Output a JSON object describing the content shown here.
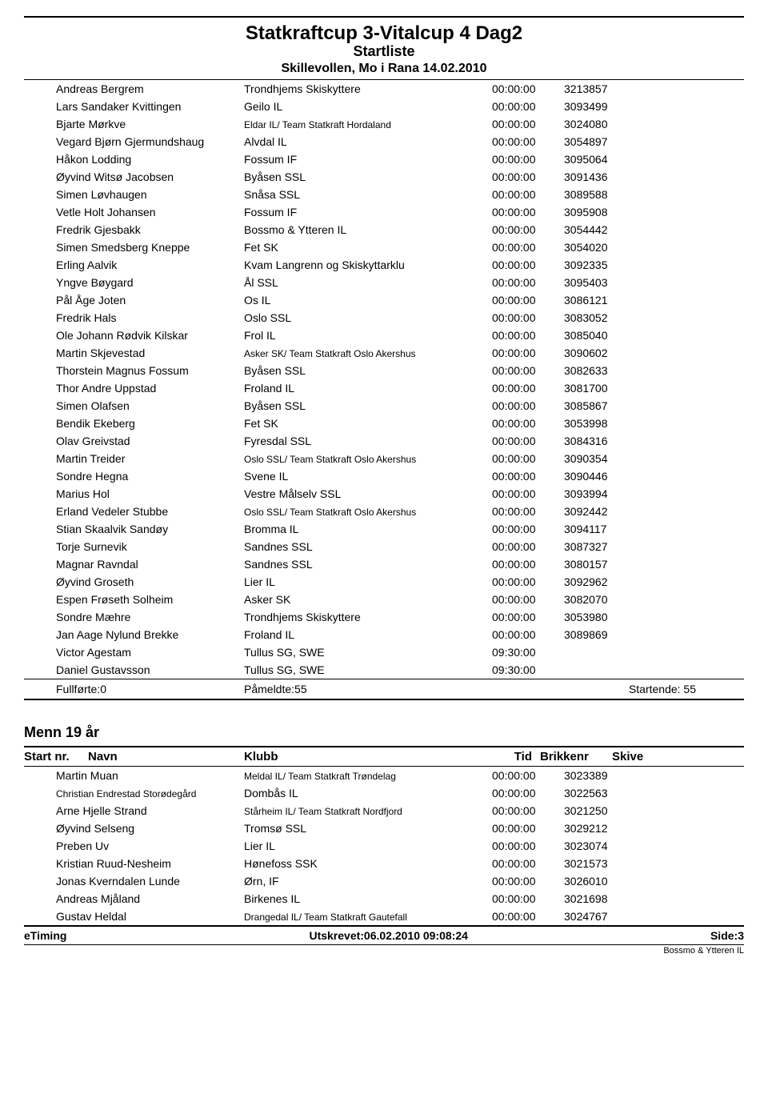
{
  "header": {
    "title": "Statkraftcup 3-Vitalcup 4 Dag2",
    "subtitle": "Startliste",
    "location": "Skillevollen, Mo i Rana 14.02.2010"
  },
  "main_rows": [
    {
      "name": "Andreas Bergrem",
      "club": "Trondhjems Skiskyttere",
      "time": "00:00:00",
      "brikkenr": "3213857"
    },
    {
      "name": "Lars Sandaker Kvittingen",
      "club": "Geilo IL",
      "time": "00:00:00",
      "brikkenr": "3093499"
    },
    {
      "name": "Bjarte Mørkve",
      "club": "Eldar IL/ Team Statkraft Hordaland",
      "club_small": true,
      "time": "00:00:00",
      "brikkenr": "3024080"
    },
    {
      "name": "Vegard Bjørn Gjermundshaug",
      "club": "Alvdal IL",
      "time": "00:00:00",
      "brikkenr": "3054897"
    },
    {
      "name": "Håkon Lodding",
      "club": "Fossum IF",
      "time": "00:00:00",
      "brikkenr": "3095064"
    },
    {
      "name": "Øyvind Witsø Jacobsen",
      "club": "Byåsen SSL",
      "time": "00:00:00",
      "brikkenr": "3091436"
    },
    {
      "name": "Simen Løvhaugen",
      "club": "Snåsa SSL",
      "time": "00:00:00",
      "brikkenr": "3089588"
    },
    {
      "name": "Vetle Holt Johansen",
      "club": "Fossum IF",
      "time": "00:00:00",
      "brikkenr": "3095908"
    },
    {
      "name": "Fredrik Gjesbakk",
      "club": "Bossmo & Ytteren IL",
      "time": "00:00:00",
      "brikkenr": "3054442"
    },
    {
      "name": "Simen Smedsberg Kneppe",
      "club": "Fet SK",
      "time": "00:00:00",
      "brikkenr": "3054020"
    },
    {
      "name": "Erling Aalvik",
      "club": "Kvam Langrenn og Skiskyttarklu",
      "time": "00:00:00",
      "brikkenr": "3092335"
    },
    {
      "name": "Yngve Bøygard",
      "club": "Ål SSL",
      "time": "00:00:00",
      "brikkenr": "3095403"
    },
    {
      "name": "Pål Åge Joten",
      "club": "Os IL",
      "time": "00:00:00",
      "brikkenr": "3086121"
    },
    {
      "name": "Fredrik Hals",
      "club": "Oslo SSL",
      "time": "00:00:00",
      "brikkenr": "3083052"
    },
    {
      "name": "Ole Johann Rødvik Kilskar",
      "club": "Frol IL",
      "time": "00:00:00",
      "brikkenr": "3085040"
    },
    {
      "name": "Martin Skjevestad",
      "club": "Asker SK/ Team Statkraft Oslo Akershus",
      "club_small": true,
      "time": "00:00:00",
      "brikkenr": "3090602"
    },
    {
      "name": "Thorstein Magnus Fossum",
      "club": "Byåsen SSL",
      "time": "00:00:00",
      "brikkenr": "3082633"
    },
    {
      "name": "Thor Andre Uppstad",
      "club": "Froland IL",
      "time": "00:00:00",
      "brikkenr": "3081700"
    },
    {
      "name": "Simen Olafsen",
      "club": "Byåsen SSL",
      "time": "00:00:00",
      "brikkenr": "3085867"
    },
    {
      "name": "Bendik Ekeberg",
      "club": "Fet SK",
      "time": "00:00:00",
      "brikkenr": "3053998"
    },
    {
      "name": "Olav Greivstad",
      "club": "Fyresdal SSL",
      "time": "00:00:00",
      "brikkenr": "3084316"
    },
    {
      "name": "Martin Treider",
      "club": "Oslo SSL/ Team Statkraft Oslo Akershus",
      "club_small": true,
      "time": "00:00:00",
      "brikkenr": "3090354"
    },
    {
      "name": "Sondre Hegna",
      "club": "Svene IL",
      "time": "00:00:00",
      "brikkenr": "3090446"
    },
    {
      "name": "Marius Hol",
      "club": "Vestre Målselv SSL",
      "time": "00:00:00",
      "brikkenr": "3093994"
    },
    {
      "name": "Erland Vedeler Stubbe",
      "club": "Oslo SSL/ Team Statkraft Oslo Akershus",
      "club_small": true,
      "time": "00:00:00",
      "brikkenr": "3092442"
    },
    {
      "name": "Stian Skaalvik Sandøy",
      "club": "Bromma IL",
      "time": "00:00:00",
      "brikkenr": "3094117"
    },
    {
      "name": "Torje Surnevik",
      "club": "Sandnes SSL",
      "time": "00:00:00",
      "brikkenr": "3087327"
    },
    {
      "name": "Magnar Ravndal",
      "club": "Sandnes SSL",
      "time": "00:00:00",
      "brikkenr": "3080157"
    },
    {
      "name": "Øyvind Groseth",
      "club": "Lier IL",
      "time": "00:00:00",
      "brikkenr": "3092962"
    },
    {
      "name": "Espen Frøseth Solheim",
      "club": "Asker SK",
      "time": "00:00:00",
      "brikkenr": "3082070"
    },
    {
      "name": "Sondre Mæhre",
      "club": "Trondhjems Skiskyttere",
      "time": "00:00:00",
      "brikkenr": "3053980"
    },
    {
      "name": "Jan Aage Nylund Brekke",
      "club": "Froland IL",
      "time": "00:00:00",
      "brikkenr": "3089869"
    },
    {
      "name": "Victor Agestam",
      "club": "Tullus SG, SWE",
      "time": "09:30:00",
      "brikkenr": ""
    },
    {
      "name": "Daniel Gustavsson",
      "club": "Tullus SG, SWE",
      "time": "09:30:00",
      "brikkenr": ""
    }
  ],
  "summary": {
    "fullforte": "Fullførte:0",
    "pameldte": "Påmeldte:55",
    "startende": "Startende: 55"
  },
  "category": {
    "title": "Menn 19 år",
    "headers": {
      "startnr": "Start nr.",
      "navn": "Navn",
      "klubb": "Klubb",
      "tid": "Tid",
      "brikkenr": "Brikkenr",
      "skive": "Skive"
    },
    "rows": [
      {
        "name": "Martin Muan",
        "club": "Meldal IL/ Team Statkraft Trøndelag",
        "club_small": true,
        "time": "00:00:00",
        "brikkenr": "3023389"
      },
      {
        "name": "Christian Endrestad Storødegård",
        "name_small": true,
        "club": "Dombås IL",
        "time": "00:00:00",
        "brikkenr": "3022563"
      },
      {
        "name": "Arne Hjelle Strand",
        "club": "Stårheim IL/ Team Statkraft Nordfjord",
        "club_small": true,
        "time": "00:00:00",
        "brikkenr": "3021250"
      },
      {
        "name": "Øyvind Selseng",
        "club": "Tromsø SSL",
        "time": "00:00:00",
        "brikkenr": "3029212"
      },
      {
        "name": "Preben Uv",
        "club": "Lier IL",
        "time": "00:00:00",
        "brikkenr": "3023074"
      },
      {
        "name": "Kristian Ruud-Nesheim",
        "club": "Hønefoss SSK",
        "time": "00:00:00",
        "brikkenr": "3021573"
      },
      {
        "name": "Jonas Kverndalen Lunde",
        "club": "Ørn, IF",
        "time": "00:00:00",
        "brikkenr": "3026010"
      },
      {
        "name": "Andreas Mjåland",
        "club": "Birkenes IL",
        "time": "00:00:00",
        "brikkenr": "3021698"
      },
      {
        "name": "Gustav Heldal",
        "club": "Drangedal IL/ Team Statkraft Gautefall",
        "club_small": true,
        "time": "00:00:00",
        "brikkenr": "3024767"
      }
    ]
  },
  "footer": {
    "left": "eTiming",
    "center": "Utskrevet:06.02.2010 09:08:24",
    "right": "Side:3",
    "sub": "Bossmo & Ytteren IL"
  }
}
